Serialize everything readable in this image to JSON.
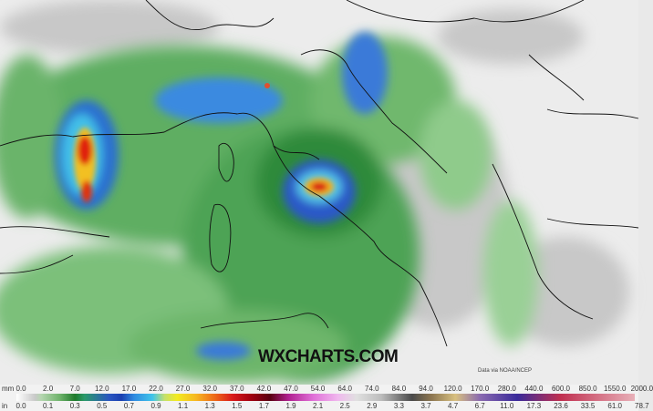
{
  "map": {
    "watermark": "WXCHARTS.COM",
    "credit": "Data via NOAA/NCEP"
  },
  "legend": {
    "mm_unit": "mm",
    "in_unit": "in",
    "mm": [
      "0.0",
      "2.0",
      "7.0",
      "12.0",
      "17.0",
      "22.0",
      "27.0",
      "32.0",
      "37.0",
      "42.0",
      "47.0",
      "54.0",
      "64.0",
      "74.0",
      "84.0",
      "94.0",
      "120.0",
      "170.0",
      "280.0",
      "440.0",
      "600.0",
      "850.0",
      "1550.0",
      "2000.0"
    ],
    "in": [
      "0.0",
      "0.1",
      "0.3",
      "0.5",
      "0.7",
      "0.9",
      "1.1",
      "1.3",
      "1.5",
      "1.7",
      "1.9",
      "2.1",
      "2.5",
      "2.9",
      "3.3",
      "3.7",
      "4.7",
      "6.7",
      "11.0",
      "17.3",
      "23.6",
      "33.5",
      "61.0",
      "78.7"
    ]
  }
}
